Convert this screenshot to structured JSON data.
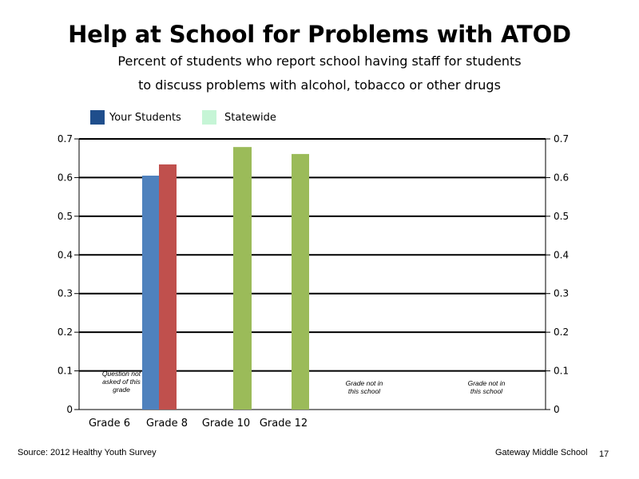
{
  "title": "Help at School for Problems with ATOD",
  "subtitle_line1": "Percent of students who report school having staff for students",
  "subtitle_line2": "to discuss problems with alcohol, tobacco or other drugs",
  "legend": [
    {
      "label": "Your Students",
      "color": "#1f4e8c"
    },
    {
      "label": "Statewide",
      "color": "#c6f5d6"
    }
  ],
  "footer": {
    "source": "Source: 2012 Healthy Youth Survey",
    "school": "Gateway Middle  School",
    "page": "17"
  },
  "chart_data": {
    "type": "bar",
    "categories": [
      "Grade 6",
      "Grade 8",
      "Grade 10",
      "Grade 12",
      "",
      ""
    ],
    "ylim": [
      0,
      0.7
    ],
    "yticks": [
      "0",
      "0.1",
      "0.2",
      "0.3",
      "0.4",
      "0.5",
      "0.6",
      "0.7"
    ],
    "grid": true,
    "legend_position": "top-left",
    "bars": [
      {
        "category": "Grade 8",
        "value": 0.605,
        "color": "#4f81bd"
      },
      {
        "category": "Grade 8",
        "value": 0.634,
        "color": "#c0504d"
      },
      {
        "category": "Grade 10",
        "value": 0.679,
        "color": "#9bbb59"
      },
      {
        "category": "Grade 12",
        "value": 0.661,
        "color": "#9bbb59"
      }
    ],
    "notes": [
      {
        "category": "Grade 6",
        "lines": [
          "Question not",
          "asked of this",
          "grade"
        ]
      },
      {
        "category": "",
        "slot": 4,
        "lines": [
          "Grade not in",
          "this school"
        ]
      },
      {
        "category": "",
        "slot": 5,
        "lines": [
          "Grade not in",
          "this school"
        ]
      }
    ]
  }
}
